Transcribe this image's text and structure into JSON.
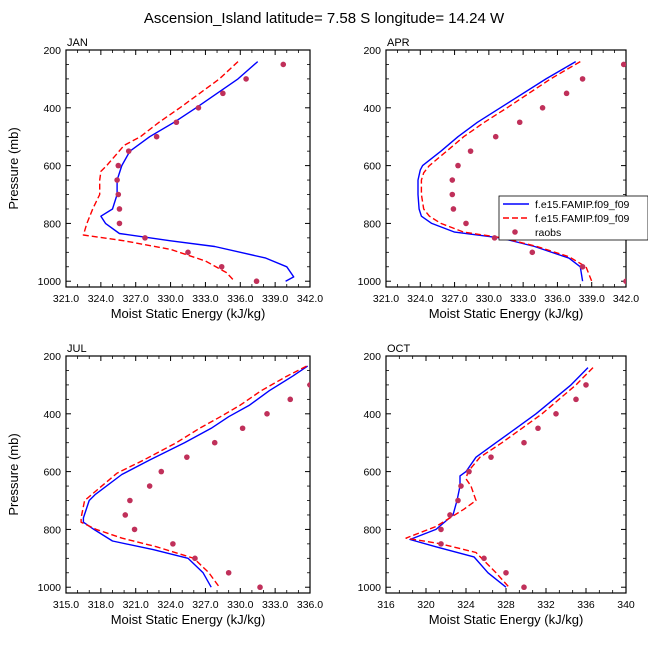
{
  "title": "Ascension_Island  latitude= 7.58 S longitude= 14.24 W",
  "colors": {
    "model1": "#0000ff",
    "model2": "#ff0000",
    "obs": "#c0305a"
  },
  "chart_data": [
    {
      "type": "line",
      "panel_label": "JAN",
      "xlabel": "Moist Static Energy (kJ/kg)",
      "ylabel": "Pressure (mb)",
      "xlim": [
        321,
        342
      ],
      "xticks": [
        "321.0",
        "324.0",
        "327.0",
        "330.0",
        "333.0",
        "336.0",
        "339.0",
        "342.0"
      ],
      "ylim": [
        200,
        1020
      ],
      "yticks": [
        "200",
        "400",
        "600",
        "800",
        "1000"
      ],
      "y_inverted": true,
      "series": [
        {
          "style": "solid",
          "color": "#0000ff",
          "points": [
            [
              337.5,
              240
            ],
            [
              335.8,
              300
            ],
            [
              332.2,
              400
            ],
            [
              330.3,
              450
            ],
            [
              328.2,
              500
            ],
            [
              326.5,
              550
            ],
            [
              325.8,
              600
            ],
            [
              325.4,
              650
            ],
            [
              325.4,
              700
            ],
            [
              325.0,
              750
            ],
            [
              324.0,
              775
            ],
            [
              324.4,
              800
            ],
            [
              325.6,
              835
            ],
            [
              330.0,
              860
            ],
            [
              333.8,
              880
            ],
            [
              338.2,
              920
            ],
            [
              340.0,
              950
            ],
            [
              340.6,
              985
            ],
            [
              339.9,
              1000
            ]
          ]
        },
        {
          "style": "dashed",
          "color": "#ff0000",
          "points": [
            [
              335.8,
              240
            ],
            [
              334.2,
              300
            ],
            [
              330.8,
              400
            ],
            [
              329.0,
              450
            ],
            [
              327.4,
              500
            ],
            [
              326.0,
              530
            ],
            [
              324.5,
              600
            ],
            [
              324.0,
              620
            ],
            [
              323.9,
              650
            ],
            [
              323.9,
              700
            ],
            [
              323.3,
              750
            ],
            [
              322.8,
              800
            ],
            [
              322.5,
              840
            ],
            [
              326.0,
              860
            ],
            [
              330.0,
              890
            ],
            [
              333.0,
              930
            ],
            [
              334.8,
              970
            ],
            [
              335.5,
              1000
            ]
          ]
        },
        {
          "style": "marker",
          "color": "#c0305a",
          "points": [
            [
              339.7,
              250
            ],
            [
              336.5,
              300
            ],
            [
              334.5,
              350
            ],
            [
              332.4,
              400
            ],
            [
              330.5,
              450
            ],
            [
              328.8,
              500
            ],
            [
              326.4,
              550
            ],
            [
              325.5,
              600
            ],
            [
              325.4,
              650
            ],
            [
              325.5,
              700
            ],
            [
              325.6,
              750
            ],
            [
              325.6,
              800
            ],
            [
              327.8,
              850
            ],
            [
              331.5,
              900
            ],
            [
              334.4,
              950
            ],
            [
              337.4,
              1000
            ]
          ]
        }
      ]
    },
    {
      "type": "line",
      "panel_label": "APR",
      "xlabel": "Moist Static Energy (kJ/kg)",
      "ylabel": "Pressure (mb)",
      "xlim": [
        321,
        342
      ],
      "xticks": [
        "321.0",
        "324.0",
        "327.0",
        "330.0",
        "333.0",
        "336.0",
        "339.0",
        "342.0"
      ],
      "ylim": [
        200,
        1020
      ],
      "yticks": [
        "200",
        "400",
        "600",
        "800",
        "1000"
      ],
      "y_inverted": true,
      "legend": {
        "placement": "right",
        "entries": [
          "f.e15.FAMIP.f09_f09",
          "f.e15.FAMIP.f09_f09",
          "raobs"
        ]
      },
      "series": [
        {
          "name": "f.e15.FAMIP.f09_f09",
          "style": "solid",
          "color": "#0000ff",
          "points": [
            [
              337.6,
              240
            ],
            [
              335.0,
              300
            ],
            [
              331.0,
              400
            ],
            [
              329.0,
              450
            ],
            [
              327.3,
              500
            ],
            [
              325.8,
              550
            ],
            [
              324.2,
              600
            ],
            [
              324.0,
              615
            ],
            [
              323.8,
              650
            ],
            [
              323.8,
              700
            ],
            [
              323.9,
              750
            ],
            [
              324.1,
              775
            ],
            [
              325.0,
              800
            ],
            [
              327.0,
              830
            ],
            [
              331.0,
              850
            ],
            [
              334.0,
              880
            ],
            [
              337.0,
              920
            ],
            [
              338.0,
              950
            ],
            [
              338.2,
              1000
            ]
          ]
        },
        {
          "name": "f.e15.FAMIP.f09_f09",
          "style": "dashed",
          "color": "#ff0000",
          "points": [
            [
              338.0,
              240
            ],
            [
              335.4,
              300
            ],
            [
              331.6,
              400
            ],
            [
              329.6,
              450
            ],
            [
              327.8,
              500
            ],
            [
              326.3,
              550
            ],
            [
              324.8,
              600
            ],
            [
              324.3,
              625
            ],
            [
              324.1,
              650
            ],
            [
              324.1,
              700
            ],
            [
              324.3,
              750
            ],
            [
              324.8,
              775
            ],
            [
              325.8,
              800
            ],
            [
              327.8,
              830
            ],
            [
              331.2,
              850
            ],
            [
              334.2,
              880
            ],
            [
              337.0,
              915
            ],
            [
              338.5,
              950
            ],
            [
              339.0,
              1000
            ]
          ]
        },
        {
          "name": "raobs",
          "style": "marker",
          "color": "#c0305a",
          "points": [
            [
              341.8,
              250
            ],
            [
              338.2,
              300
            ],
            [
              336.8,
              350
            ],
            [
              334.7,
              400
            ],
            [
              332.7,
              450
            ],
            [
              330.6,
              500
            ],
            [
              328.4,
              550
            ],
            [
              327.3,
              600
            ],
            [
              326.8,
              650
            ],
            [
              326.8,
              700
            ],
            [
              326.9,
              750
            ],
            [
              328.0,
              800
            ],
            [
              330.5,
              850
            ],
            [
              333.8,
              900
            ],
            [
              338.2,
              950
            ],
            [
              342.0,
              1000
            ]
          ]
        }
      ]
    },
    {
      "type": "line",
      "panel_label": "JUL",
      "xlabel": "Moist Static Energy (kJ/kg)",
      "ylabel": "Pressure (mb)",
      "xlim": [
        315,
        336
      ],
      "xticks": [
        "315.0",
        "318.0",
        "321.0",
        "324.0",
        "327.0",
        "330.0",
        "333.0",
        "336.0"
      ],
      "ylim": [
        200,
        1020
      ],
      "yticks": [
        "200",
        "400",
        "600",
        "800",
        "1000"
      ],
      "y_inverted": true,
      "series": [
        {
          "style": "solid",
          "color": "#0000ff",
          "points": [
            [
              335.8,
              235
            ],
            [
              334.5,
              270
            ],
            [
              332.5,
              320
            ],
            [
              330.8,
              370
            ],
            [
              329.0,
              410
            ],
            [
              327.5,
              450
            ],
            [
              325.2,
              500
            ],
            [
              322.2,
              560
            ],
            [
              319.8,
              610
            ],
            [
              317.5,
              680
            ],
            [
              317.0,
              700
            ],
            [
              316.5,
              760
            ],
            [
              316.5,
              775
            ],
            [
              317.4,
              800
            ],
            [
              319.0,
              840
            ],
            [
              322.5,
              870
            ],
            [
              325.5,
              900
            ],
            [
              326.8,
              950
            ],
            [
              327.5,
              1000
            ]
          ]
        },
        {
          "style": "dashed",
          "color": "#ff0000",
          "points": [
            [
              335.7,
              235
            ],
            [
              334.0,
              270
            ],
            [
              331.8,
              320
            ],
            [
              330.0,
              370
            ],
            [
              328.3,
              410
            ],
            [
              326.5,
              450
            ],
            [
              324.5,
              500
            ],
            [
              321.7,
              560
            ],
            [
              319.4,
              605
            ],
            [
              316.9,
              690
            ],
            [
              316.6,
              700
            ],
            [
              316.3,
              760
            ],
            [
              316.3,
              775
            ],
            [
              317.6,
              800
            ],
            [
              319.8,
              830
            ],
            [
              322.8,
              860
            ],
            [
              326.0,
              900
            ],
            [
              327.3,
              950
            ],
            [
              328.2,
              1000
            ]
          ]
        },
        {
          "style": "marker",
          "color": "#c0305a",
          "points": [
            [
              336.0,
              300
            ],
            [
              334.3,
              350
            ],
            [
              332.3,
              400
            ],
            [
              330.2,
              450
            ],
            [
              327.8,
              500
            ],
            [
              325.4,
              550
            ],
            [
              323.2,
              600
            ],
            [
              322.2,
              650
            ],
            [
              320.5,
              700
            ],
            [
              320.1,
              750
            ],
            [
              320.9,
              800
            ],
            [
              324.2,
              850
            ],
            [
              326.1,
              900
            ],
            [
              329.0,
              950
            ],
            [
              331.7,
              1000
            ]
          ]
        }
      ]
    },
    {
      "type": "line",
      "panel_label": "OCT",
      "xlabel": "Moist Static Energy (kJ/kg)",
      "ylabel": "Pressure (mb)",
      "xlim": [
        316,
        340
      ],
      "xticks": [
        "316",
        "320",
        "324",
        "328",
        "332",
        "336",
        "340"
      ],
      "ylim": [
        200,
        1020
      ],
      "yticks": [
        "200",
        "400",
        "600",
        "800",
        "1000"
      ],
      "y_inverted": true,
      "series": [
        {
          "style": "solid",
          "color": "#0000ff",
          "points": [
            [
              336.2,
              240
            ],
            [
              334.5,
              300
            ],
            [
              331.0,
              400
            ],
            [
              329.0,
              450
            ],
            [
              327.0,
              500
            ],
            [
              325.0,
              550
            ],
            [
              324.0,
              600
            ],
            [
              323.4,
              615
            ],
            [
              323.4,
              650
            ],
            [
              323.1,
              700
            ],
            [
              322.7,
              750
            ],
            [
              321.0,
              800
            ],
            [
              318.4,
              835
            ],
            [
              321.0,
              860
            ],
            [
              324.8,
              895
            ],
            [
              326.2,
              950
            ],
            [
              328.0,
              1000
            ]
          ]
        },
        {
          "style": "dashed",
          "color": "#ff0000",
          "points": [
            [
              336.7,
              240
            ],
            [
              335.0,
              300
            ],
            [
              331.6,
              400
            ],
            [
              329.6,
              450
            ],
            [
              327.6,
              500
            ],
            [
              325.4,
              550
            ],
            [
              324.2,
              600
            ],
            [
              324.0,
              625
            ],
            [
              324.5,
              650
            ],
            [
              325.0,
              700
            ],
            [
              323.8,
              730
            ],
            [
              321.0,
              790
            ],
            [
              318.0,
              830
            ],
            [
              321.5,
              850
            ],
            [
              325.0,
              880
            ],
            [
              327.0,
              950
            ],
            [
              328.3,
              1000
            ]
          ]
        },
        {
          "style": "marker",
          "color": "#c0305a",
          "points": [
            [
              336.0,
              300
            ],
            [
              335.0,
              350
            ],
            [
              333.0,
              400
            ],
            [
              331.2,
              450
            ],
            [
              329.8,
              500
            ],
            [
              326.5,
              550
            ],
            [
              324.3,
              600
            ],
            [
              323.5,
              650
            ],
            [
              323.2,
              700
            ],
            [
              322.4,
              750
            ],
            [
              321.5,
              800
            ],
            [
              321.5,
              850
            ],
            [
              325.8,
              900
            ],
            [
              328.0,
              950
            ],
            [
              329.8,
              1000
            ]
          ]
        }
      ]
    }
  ]
}
